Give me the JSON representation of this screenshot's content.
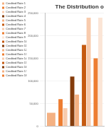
{
  "chart_data": {
    "type": "bar",
    "title": "The Distribution o",
    "categories": [
      null,
      null,
      null,
      null,
      null
    ],
    "series": [
      {
        "name": "Credited Rate 1",
        "color": "#f4b183",
        "values": [
          30000,
          null,
          null,
          null,
          null
        ]
      },
      {
        "name": "Credited Rate 2",
        "color": "#ed7d31",
        "values": [
          null,
          60000,
          null,
          null,
          null
        ]
      },
      {
        "name": "Credited Rate 3",
        "color": "#f8cbad",
        "values": [
          null,
          40000,
          null,
          null,
          null
        ]
      },
      {
        "name": "Credited Rate 4",
        "color": "#843c0c",
        "values": [
          null,
          null,
          110000,
          null,
          null
        ]
      },
      {
        "name": "Credited Rate 5",
        "color": "#f4b183",
        "values": [
          null,
          null,
          70000,
          null,
          null
        ]
      },
      {
        "name": "Credited Rate 6",
        "color": "#c55a11",
        "values": [
          null,
          null,
          null,
          180000,
          null
        ]
      },
      {
        "name": "Credited Rate 7",
        "color": "#f8cbad",
        "values": [
          null,
          null,
          null,
          240000,
          null
        ]
      },
      {
        "name": "Credited Rate 8",
        "color": "#ed7d31",
        "values": [
          null,
          null,
          null,
          null,
          150000
        ]
      },
      {
        "name": "Credited Rate 9",
        "color": "#fbe5d6",
        "values": [
          null,
          null,
          null,
          null,
          240000
        ]
      },
      {
        "name": "Credited Rate 10",
        "color": "#c55a11",
        "values": [
          null,
          null,
          null,
          null,
          null
        ]
      },
      {
        "name": "Credited Rate 11",
        "color": "#843c0c",
        "values": [
          null,
          null,
          null,
          null,
          null
        ]
      },
      {
        "name": "Credited Rate 12",
        "color": "#f4b183",
        "values": [
          null,
          null,
          null,
          null,
          null
        ]
      },
      {
        "name": "Credited Rate 13",
        "color": "#ed7d31",
        "values": [
          null,
          null,
          null,
          null,
          null
        ]
      },
      {
        "name": "Credited Rate 14",
        "color": "#f8cbad",
        "values": [
          null,
          null,
          null,
          null,
          null
        ]
      },
      {
        "name": "Credited Rate 15",
        "color": "#c55a11",
        "values": [
          null,
          null,
          null,
          null,
          null
        ]
      },
      {
        "name": "Credited Rate 16",
        "color": "#843c0c",
        "values": [
          null,
          null,
          null,
          null,
          null
        ]
      },
      {
        "name": "Credited Rate 17",
        "color": "#f4b183",
        "values": [
          null,
          null,
          null,
          null,
          null
        ]
      },
      {
        "name": "Credited Rate 18",
        "color": "#ed7d31",
        "values": [
          null,
          null,
          null,
          null,
          null
        ]
      }
    ],
    "ylim": [
      0,
      250000
    ],
    "yticks": [
      0,
      {
        "value": 50000,
        "label": "50,000"
      },
      {
        "value": 100000,
        "label": "100,000"
      },
      {
        "value": 150000,
        "label": "150,000"
      },
      {
        "value": 200000,
        "label": "200,000"
      },
      {
        "value": 250000,
        "label": "250,000"
      }
    ],
    "grid": true,
    "legend": "left"
  }
}
